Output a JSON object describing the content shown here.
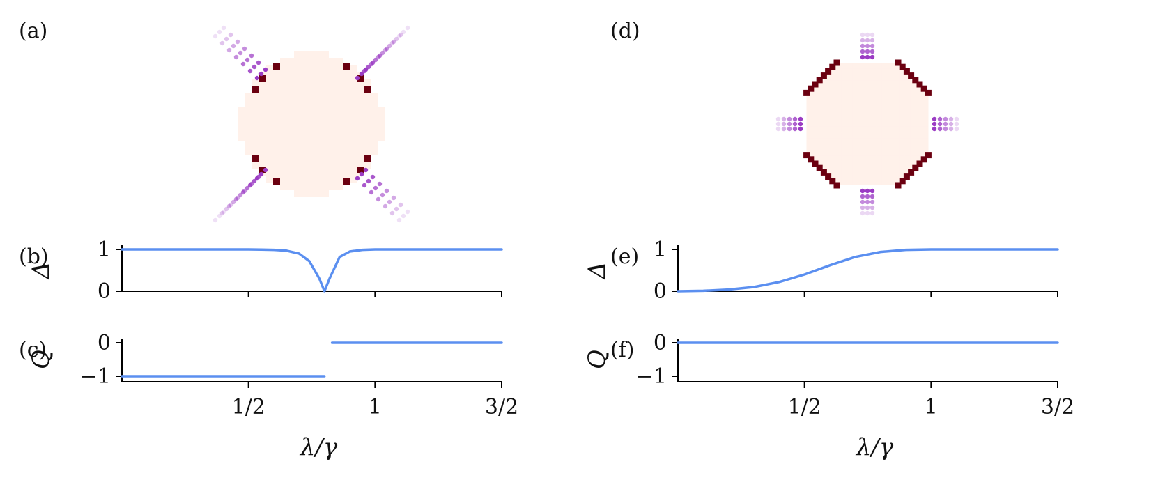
{
  "panel_labels": [
    "(a)",
    "(b)",
    "(c)",
    "(d)",
    "(e)",
    "(f)"
  ],
  "colors": {
    "line": "#5b8ff0",
    "disk_fill": "#fff1ea",
    "disk_edge": "#ffe0d2",
    "corner": "#6b0010",
    "purple": "#9b3cc4",
    "axis": "#000000"
  },
  "chart_data": [
    {
      "type": "heatmap",
      "panel": "(a)",
      "description_shape": "circular lattice with four diagonal purple arms",
      "arms": "diagonal"
    },
    {
      "type": "line",
      "panel": "(b)",
      "ylabel": "Δ",
      "xlim": [
        0,
        1.5
      ],
      "ylim": [
        0,
        1
      ],
      "yticks": [
        0,
        1
      ],
      "ytick_labels": [
        "0",
        "1"
      ],
      "xticks": [
        0.5,
        1,
        1.5
      ],
      "series": [
        {
          "x": [
            0,
            0.1,
            0.2,
            0.3,
            0.4,
            0.5,
            0.55,
            0.6,
            0.65,
            0.7,
            0.74,
            0.78,
            0.8,
            0.82,
            0.86,
            0.9,
            0.95,
            1.0,
            1.1,
            1.2,
            1.3,
            1.4,
            1.5
          ],
          "y": [
            1,
            1,
            1,
            1,
            1,
            1,
            0.995,
            0.99,
            0.97,
            0.9,
            0.72,
            0.3,
            0.0,
            0.3,
            0.82,
            0.95,
            0.99,
            1,
            1,
            1,
            1,
            1,
            1
          ]
        }
      ]
    },
    {
      "type": "line",
      "panel": "(c)",
      "ylabel": "Q",
      "xlim": [
        0,
        1.5
      ],
      "ylim": [
        -1,
        0
      ],
      "yticks": [
        -1,
        0
      ],
      "ytick_labels": [
        "−1",
        "0"
      ],
      "xticks": [
        0.5,
        1,
        1.5
      ],
      "xtick_labels": [
        "1/2",
        "1",
        "3/2"
      ],
      "xlabel": "λ/γ",
      "series": [
        {
          "x": [
            0,
            0.8
          ],
          "y": [
            -1,
            -1
          ]
        },
        {
          "x": [
            0.83,
            1.5
          ],
          "y": [
            0,
            0
          ]
        }
      ]
    },
    {
      "type": "heatmap",
      "panel": "(d)",
      "description_shape": "octagonal lattice with four axial purple arms",
      "arms": "axial"
    },
    {
      "type": "line",
      "panel": "(e)",
      "ylabel": "Δ",
      "xlim": [
        0,
        1.5
      ],
      "ylim": [
        0,
        1
      ],
      "yticks": [
        0,
        1
      ],
      "ytick_labels": [
        "0",
        "1"
      ],
      "xticks": [
        0.5,
        1,
        1.5
      ],
      "series": [
        {
          "x": [
            0,
            0.1,
            0.2,
            0.3,
            0.4,
            0.5,
            0.6,
            0.7,
            0.8,
            0.9,
            1.0,
            1.1,
            1.2,
            1.3,
            1.4,
            1.5
          ],
          "y": [
            0,
            0.01,
            0.04,
            0.1,
            0.22,
            0.4,
            0.62,
            0.82,
            0.94,
            0.99,
            1,
            1,
            1,
            1,
            1,
            1
          ]
        }
      ]
    },
    {
      "type": "line",
      "panel": "(f)",
      "ylabel": "Q",
      "xlim": [
        0,
        1.5
      ],
      "ylim": [
        -1,
        0
      ],
      "yticks": [
        -1,
        0
      ],
      "ytick_labels": [
        "−1",
        "0"
      ],
      "xticks": [
        0.5,
        1,
        1.5
      ],
      "xtick_labels": [
        "1/2",
        "1",
        "3/2"
      ],
      "xlabel": "λ/γ",
      "series": [
        {
          "x": [
            0,
            1.5
          ],
          "y": [
            0,
            0
          ]
        }
      ]
    }
  ]
}
